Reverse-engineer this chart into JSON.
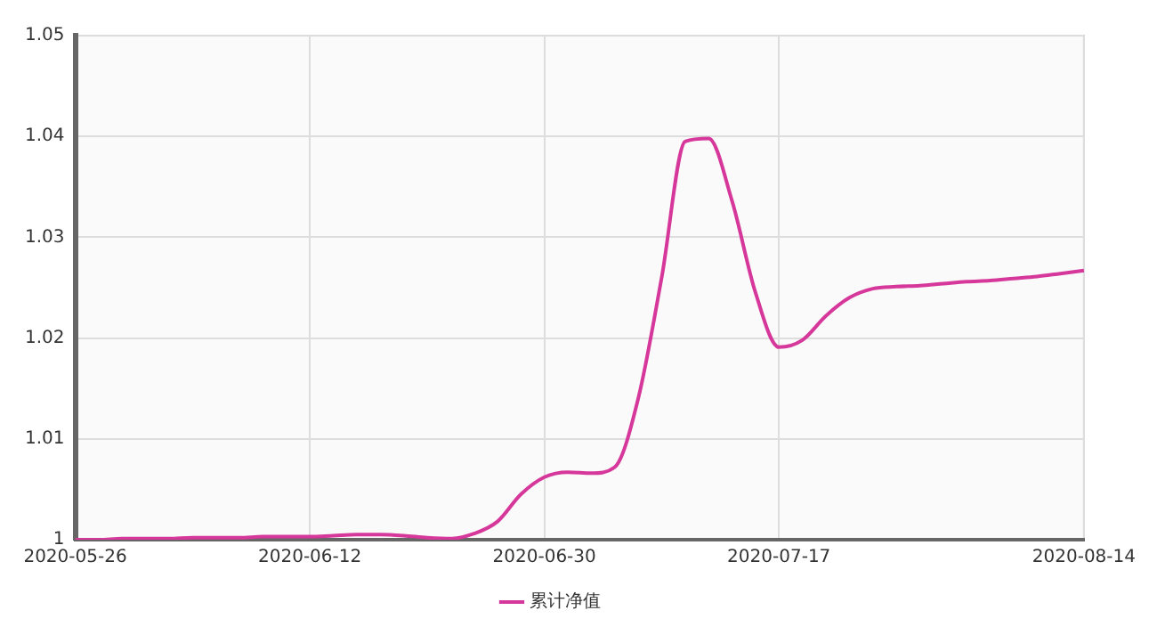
{
  "chart_data": {
    "type": "line",
    "categories": [
      "2020-05-26",
      null,
      null,
      null,
      null,
      null,
      null,
      null,
      null,
      null,
      "2020-06-12",
      null,
      null,
      null,
      null,
      null,
      null,
      null,
      null,
      null,
      "2020-06-30",
      null,
      null,
      null,
      null,
      null,
      null,
      null,
      null,
      null,
      "2020-07-17",
      null,
      null,
      null,
      null,
      null,
      null,
      null,
      null,
      null,
      null,
      null,
      null,
      "2020-08-14"
    ],
    "series": [
      {
        "name": "累计净值",
        "color": "#d6379a",
        "values": [
          1.0,
          1.0,
          1.0001,
          1.0001,
          1.0001,
          1.0002,
          1.0002,
          1.0002,
          1.0003,
          1.0003,
          1.0003,
          1.0004,
          1.0005,
          1.0005,
          1.0004,
          1.0002,
          1.0001,
          1.0006,
          1.0018,
          1.0045,
          1.0062,
          1.0067,
          1.0066,
          1.0072,
          1.014,
          1.026,
          1.0395,
          1.0398,
          1.0336,
          1.0245,
          1.0191,
          1.0198,
          1.0222,
          1.024,
          1.0249,
          1.0251,
          1.0252,
          1.0254,
          1.0256,
          1.0257,
          1.0259,
          1.0261,
          1.0264,
          1.0267
        ]
      }
    ],
    "ylim": [
      1,
      1.05
    ],
    "yticks": [
      1,
      1.01,
      1.02,
      1.03,
      1.04,
      1.05
    ],
    "grid": true,
    "legend": "bottom",
    "marker": "none",
    "line_style": "solid"
  }
}
